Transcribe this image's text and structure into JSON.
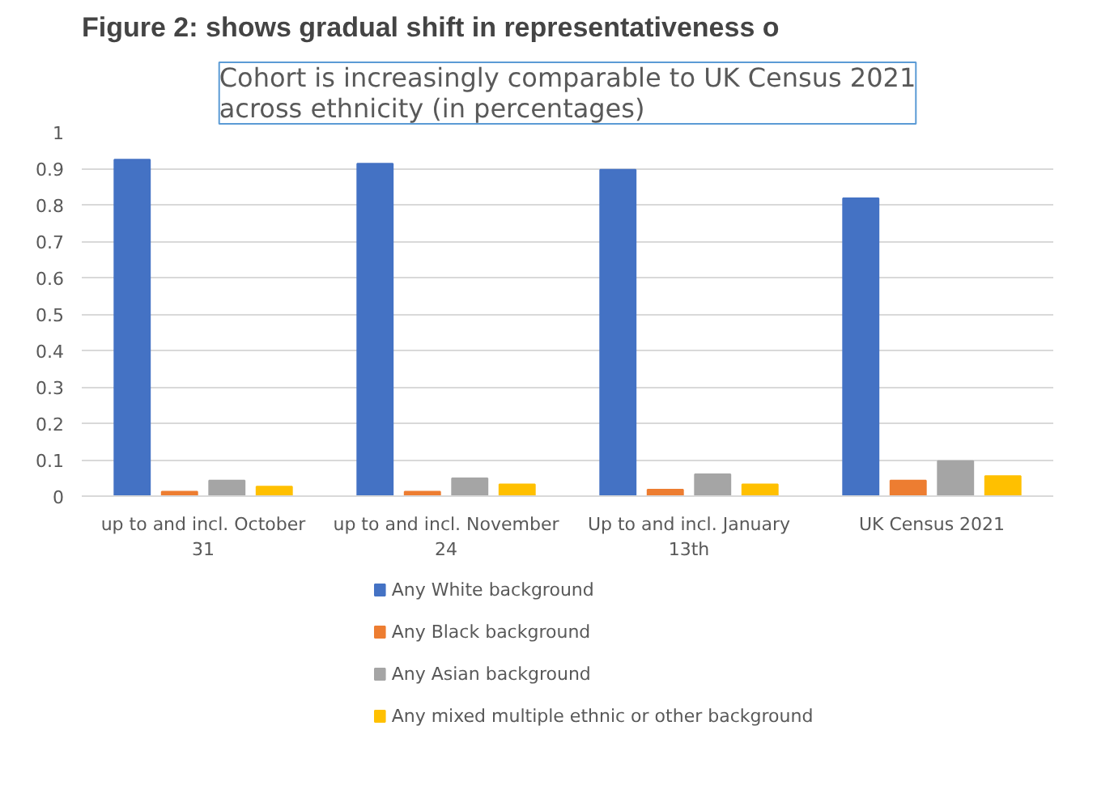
{
  "chart_data": {
    "type": "bar",
    "title": "Cohort is increasingly comparable to UK Census 2021 across ethnicity (in percentages)",
    "annotations": [
      "Figure 2: shows gradual shift in representativeness o"
    ],
    "categories": [
      "up to and incl. October 31",
      "up to and incl. November 24",
      "Up to and incl. January 13th",
      "UK Census 2021"
    ],
    "series": [
      {
        "name": "Any White background",
        "color": "#4472c4",
        "values": [
          0.924,
          0.913,
          0.896,
          0.818
        ]
      },
      {
        "name": "Any Black background",
        "color": "#ed7d31",
        "values": [
          0.012,
          0.012,
          0.018,
          0.043
        ]
      },
      {
        "name": "Any Asian background",
        "color": "#a5a5a5",
        "values": [
          0.043,
          0.049,
          0.06,
          0.096
        ]
      },
      {
        "name": "Any mixed multiple ethnic or other background",
        "color": "#ffc000",
        "values": [
          0.026,
          0.032,
          0.032,
          0.055
        ]
      }
    ],
    "ylim": [
      0,
      1
    ],
    "yticks": [
      0,
      0.1,
      0.2,
      0.3,
      0.4,
      0.5,
      0.6,
      0.7,
      0.8,
      0.9,
      1
    ],
    "grid": "y",
    "legend": "bottom"
  }
}
